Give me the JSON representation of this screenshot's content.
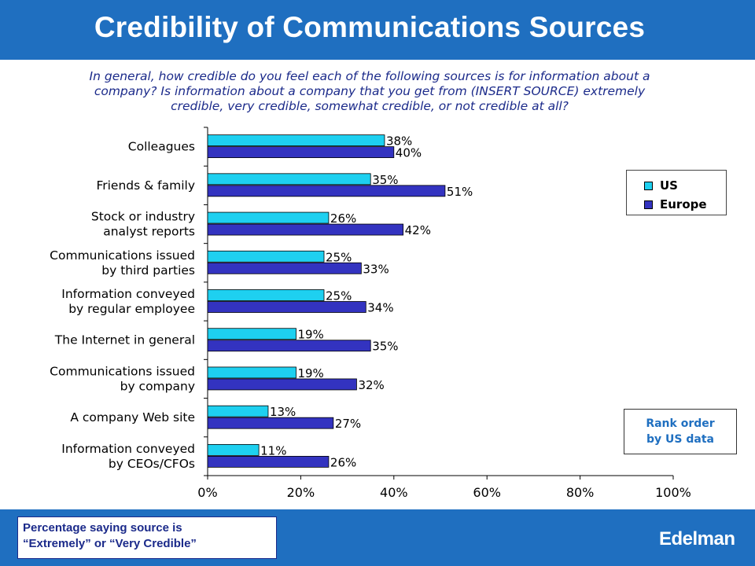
{
  "header": {
    "title": "Credibility of Communications Sources"
  },
  "question": "In general, how credible do you feel each of the  following sources is for information about a company?  Is information about a company that you get from (INSERT SOURCE) extremely credible, very credible, somewhat credible, or not credible at all?",
  "footer": {
    "note_line1": "Percentage saying source is",
    "note_line2": "“Extremely” or “Very Credible”",
    "brand": "Edelman"
  },
  "rank_note_line1": "Rank order",
  "rank_note_line2": "by US data",
  "colors": {
    "header_bg": "#1f6fc0",
    "us": "#1ed0f0",
    "europe": "#3333c0"
  },
  "chart_data": {
    "type": "bar",
    "orientation": "horizontal",
    "categories": [
      [
        "Colleagues"
      ],
      [
        "Friends & family"
      ],
      [
        "Stock or industry",
        "analyst reports"
      ],
      [
        "Communications issued",
        "by third parties"
      ],
      [
        "Information conveyed",
        "by regular employee"
      ],
      [
        "The Internet in general"
      ],
      [
        "Communications issued",
        "by company"
      ],
      [
        "A company Web site"
      ],
      [
        "Information conveyed",
        "by CEOs/CFOs"
      ]
    ],
    "series": [
      {
        "name": "US",
        "values": [
          38,
          35,
          26,
          25,
          25,
          19,
          19,
          13,
          11
        ],
        "labels": [
          "38%",
          "35%",
          "26%",
          "25%",
          "25%",
          "19%",
          "19%",
          "13%",
          "11%"
        ]
      },
      {
        "name": "Europe",
        "values": [
          40,
          51,
          42,
          33,
          34,
          35,
          32,
          27,
          26
        ],
        "labels": [
          "40%",
          "51%",
          "42%",
          "33%",
          "34%",
          "35%",
          "32%",
          "27%",
          "26%"
        ]
      }
    ],
    "xlim": [
      0,
      100
    ],
    "xticks": [
      "0%",
      "20%",
      "40%",
      "60%",
      "80%",
      "100%"
    ],
    "grid": false,
    "legend_position": "right"
  }
}
